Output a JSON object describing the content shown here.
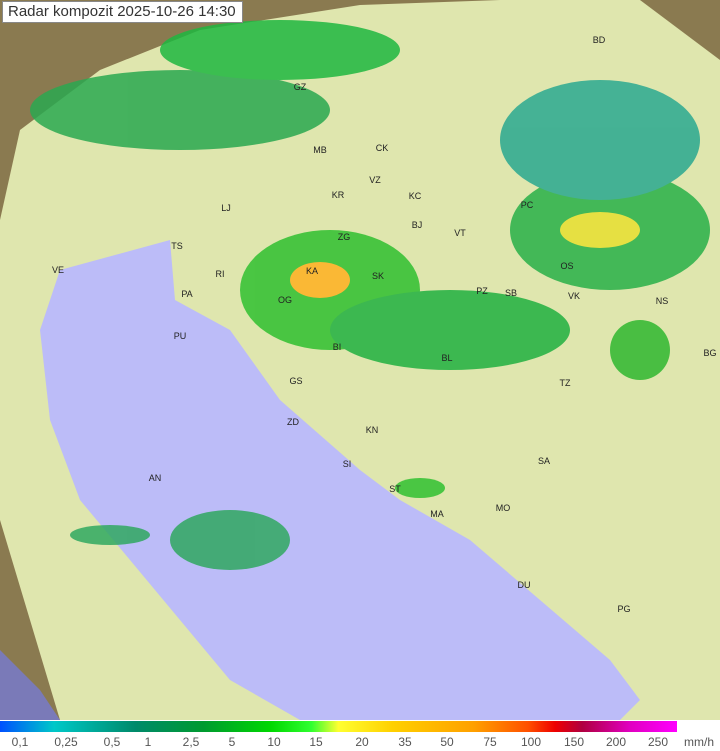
{
  "title": "Radar kompozit  2025-10-26   14:30",
  "legend": {
    "ticks": [
      "0,1",
      "0,25",
      "0,5",
      "1",
      "2,5",
      "5",
      "10",
      "15",
      "20",
      "35",
      "50",
      "75",
      "100",
      "150",
      "200",
      "250"
    ],
    "unit": "mm/h"
  },
  "colors": {
    "sea": "#bcbcf8",
    "land": "#e4e8b0",
    "mountains": "#a09060"
  },
  "cities": [
    "GZ",
    "MB",
    "CK",
    "VZ",
    "KC",
    "KR",
    "LJ",
    "ZG",
    "BJ",
    "VT",
    "PC",
    "BD",
    "TS",
    "VE",
    "RI",
    "KA",
    "SK",
    "PA",
    "OG",
    "PZ",
    "SB",
    "OS",
    "VK",
    "NS",
    "PU",
    "BI",
    "BL",
    "BG",
    "GS",
    "TZ",
    "ZD",
    "KN",
    "SA",
    "SI",
    "AN",
    "ST",
    "MO",
    "MA",
    "DU",
    "PG"
  ]
}
